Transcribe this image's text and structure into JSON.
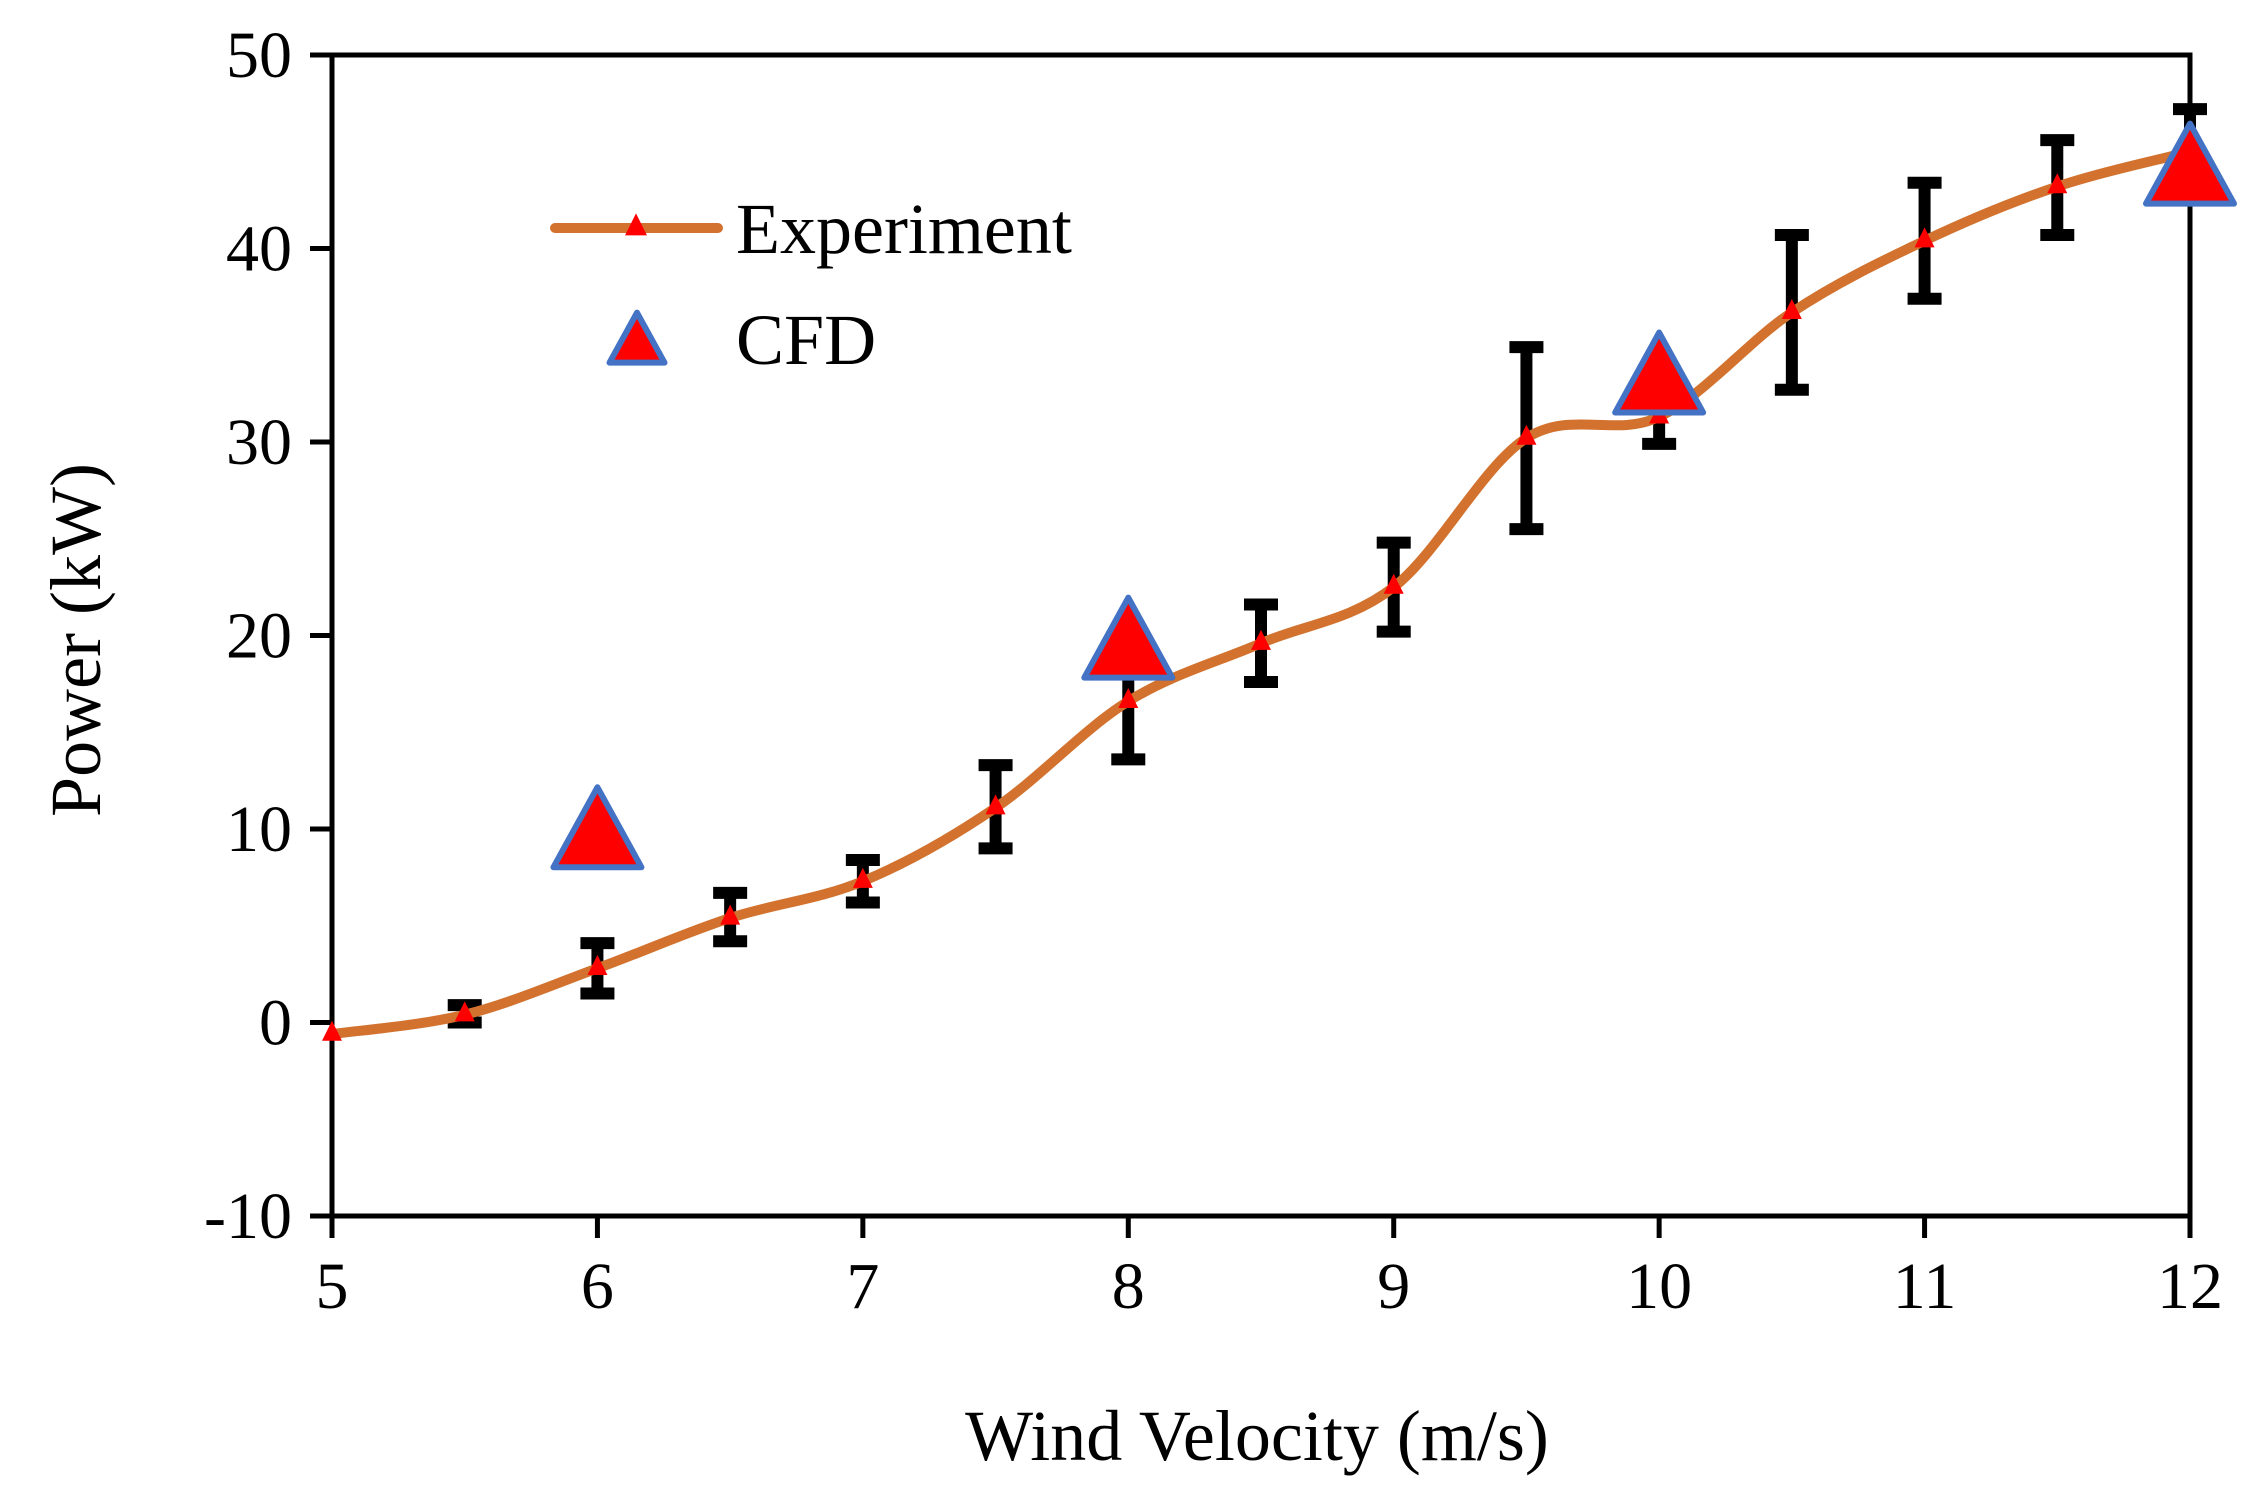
{
  "chart_data": {
    "type": "line",
    "xlabel": "Wind Velocity (m/s)",
    "ylabel": "Power (kW)",
    "xlim": [
      5,
      12
    ],
    "ylim": [
      -10,
      50
    ],
    "xticks": [
      5,
      6,
      7,
      8,
      9,
      10,
      11,
      12
    ],
    "yticks": [
      -10,
      0,
      10,
      20,
      30,
      40,
      50
    ],
    "grid": false,
    "legend_position": "top-left",
    "series": [
      {
        "name": "Experiment",
        "kind": "smooth-line-with-markers",
        "color": "#d2722e",
        "marker_color": "#ff0000",
        "x": [
          5,
          5.5,
          6,
          6.5,
          7,
          7.5,
          8,
          8.5,
          9,
          9.5,
          10,
          10.5,
          11,
          11.5,
          12
        ],
        "y": [
          -0.6,
          0.4,
          2.8,
          5.4,
          7.3,
          11.1,
          16.6,
          19.6,
          22.5,
          30.2,
          31.3,
          36.7,
          40.4,
          43.2,
          45
        ],
        "error_low": [
          -0.6,
          0,
          1.5,
          4.2,
          6.2,
          9.0,
          13.6,
          17.6,
          20.2,
          25.5,
          29.9,
          32.7,
          37.4,
          40.7,
          43
        ],
        "error_high": [
          -0.6,
          0.9,
          4.1,
          6.7,
          8.4,
          13.3,
          19.8,
          21.6,
          24.8,
          34.9,
          33.8,
          40.7,
          43.4,
          45.6,
          47.2
        ]
      },
      {
        "name": "CFD",
        "kind": "markers",
        "color": "#ff0000",
        "edge_color": "#4472c4",
        "x": [
          6,
          8,
          10,
          12
        ],
        "y": [
          9.4,
          19.2,
          32.9,
          43.7
        ]
      }
    ]
  }
}
